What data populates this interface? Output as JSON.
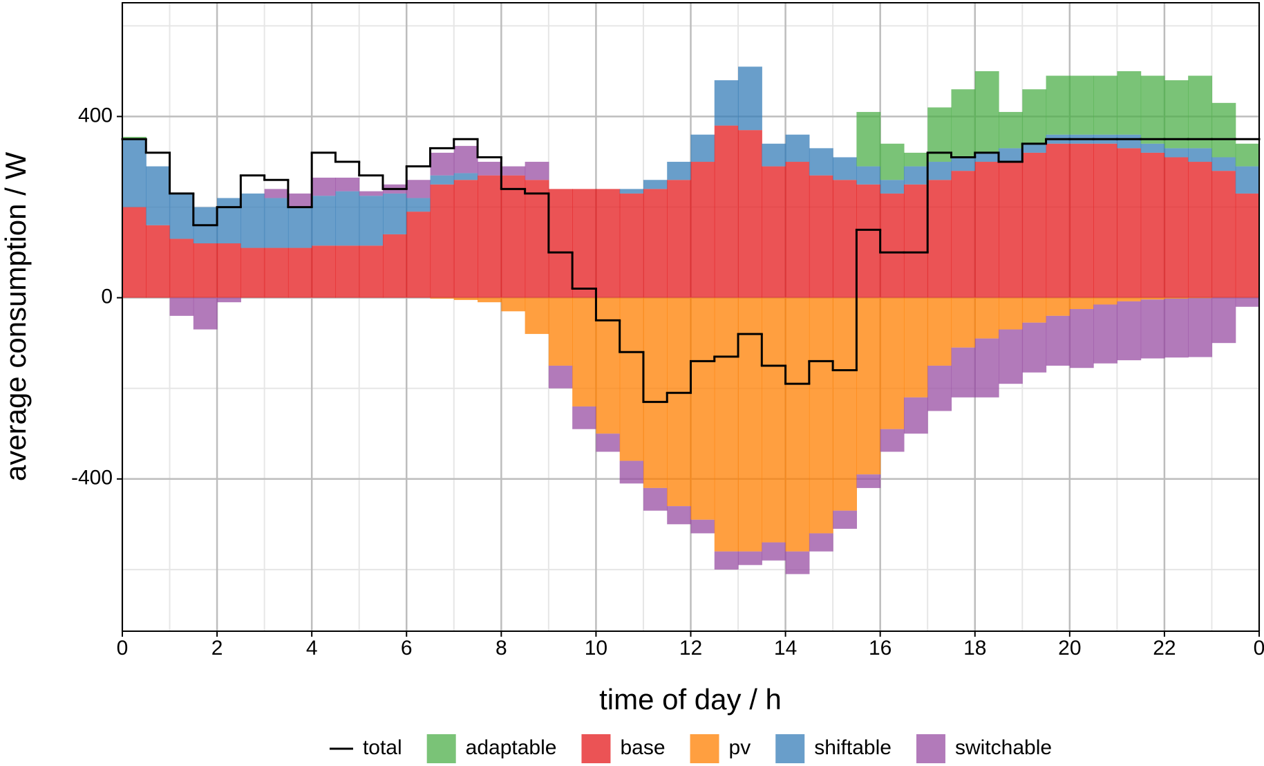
{
  "chart_data": {
    "type": "stacked-area",
    "xlabel": "time of day / h",
    "ylabel": "average consumption / W",
    "x": [
      0,
      0.5,
      1,
      1.5,
      2,
      2.5,
      3,
      3.5,
      4,
      4.5,
      5,
      5.5,
      6,
      6.5,
      7,
      7.5,
      8,
      8.5,
      9,
      9.5,
      10,
      10.5,
      11,
      11.5,
      12,
      12.5,
      13,
      13.5,
      14,
      14.5,
      15,
      15.5,
      16,
      16.5,
      17,
      17.5,
      18,
      18.5,
      19,
      19.5,
      20,
      20.5,
      21,
      21.5,
      22,
      22.5,
      23,
      23.5
    ],
    "xlim": [
      0,
      24
    ],
    "xticks": [
      0,
      2,
      4,
      6,
      8,
      10,
      12,
      14,
      16,
      18,
      20,
      22,
      {
        "value": 24,
        "label": "0"
      }
    ],
    "xminor": [
      1,
      3,
      5,
      7,
      9,
      11,
      13,
      15,
      17,
      19,
      21,
      23
    ],
    "ylim": [
      -736,
      651
    ],
    "yticks": [
      -400,
      0,
      400
    ],
    "yminor": [
      -600,
      -200,
      200,
      600
    ],
    "grid": true,
    "legend": "bottom",
    "series": [
      {
        "name": "total",
        "kind": "step-line",
        "color": "#000000",
        "values": [
          350,
          320,
          230,
          160,
          200,
          270,
          260,
          200,
          320,
          300,
          270,
          240,
          290,
          330,
          350,
          310,
          240,
          230,
          100,
          20,
          -50,
          -120,
          -230,
          -210,
          -140,
          -130,
          -80,
          -150,
          -190,
          -140,
          -160,
          150,
          100,
          100,
          320,
          310,
          320,
          300,
          340,
          350,
          350,
          350,
          350,
          350,
          350,
          350,
          350,
          350
        ]
      },
      {
        "name": "adaptable",
        "kind": "area",
        "stack_level": 4,
        "color": "#4daf4a",
        "values": [
          5,
          0,
          0,
          0,
          0,
          0,
          0,
          0,
          0,
          0,
          0,
          0,
          0,
          0,
          0,
          0,
          0,
          0,
          0,
          0,
          0,
          0,
          0,
          0,
          0,
          0,
          0,
          0,
          0,
          0,
          0,
          120,
          80,
          30,
          120,
          150,
          180,
          80,
          120,
          130,
          130,
          130,
          140,
          150,
          150,
          160,
          120,
          50
        ]
      },
      {
        "name": "base",
        "kind": "area",
        "stack_level": 0,
        "color": "#e41a1c",
        "values": [
          200,
          160,
          130,
          120,
          120,
          110,
          110,
          110,
          115,
          115,
          115,
          140,
          190,
          250,
          260,
          270,
          270,
          260,
          240,
          240,
          240,
          230,
          240,
          260,
          300,
          380,
          370,
          290,
          300,
          270,
          260,
          250,
          230,
          250,
          260,
          280,
          300,
          300,
          320,
          340,
          340,
          340,
          330,
          320,
          310,
          300,
          280,
          230
        ]
      },
      {
        "name": "pv",
        "kind": "area",
        "stack_level": 1,
        "color": "#ff7f00",
        "values": [
          0,
          0,
          0,
          0,
          0,
          0,
          0,
          0,
          0,
          0,
          0,
          0,
          0,
          -2,
          -5,
          -10,
          -30,
          -80,
          -150,
          -240,
          -300,
          -360,
          -420,
          -460,
          -490,
          -560,
          -560,
          -540,
          -560,
          -520,
          -470,
          -390,
          -290,
          -220,
          -150,
          -110,
          -90,
          -70,
          -55,
          -40,
          -25,
          -15,
          -8,
          -4,
          -2,
          -1,
          0,
          0
        ]
      },
      {
        "name": "shiftable",
        "kind": "area",
        "stack_level": 2,
        "color": "#377eb8",
        "values": [
          150,
          130,
          100,
          80,
          100,
          120,
          110,
          90,
          110,
          120,
          110,
          90,
          30,
          20,
          15,
          0,
          0,
          0,
          0,
          0,
          0,
          10,
          20,
          40,
          60,
          100,
          140,
          50,
          60,
          60,
          50,
          40,
          30,
          40,
          40,
          30,
          20,
          30,
          20,
          20,
          20,
          20,
          30,
          20,
          20,
          30,
          30,
          60
        ]
      },
      {
        "name": "switchable",
        "kind": "area",
        "stack_level": 3,
        "color": "#984ea3",
        "values": [
          0,
          0,
          -40,
          -70,
          -10,
          0,
          20,
          30,
          40,
          30,
          10,
          20,
          40,
          50,
          60,
          30,
          20,
          40,
          -50,
          -50,
          -40,
          -50,
          -50,
          -40,
          -30,
          -40,
          -30,
          -40,
          -50,
          -40,
          -40,
          -30,
          -50,
          -80,
          -100,
          -110,
          -130,
          -120,
          -110,
          -110,
          -130,
          -130,
          -130,
          -130,
          -130,
          -130,
          -100,
          -20
        ]
      }
    ]
  }
}
